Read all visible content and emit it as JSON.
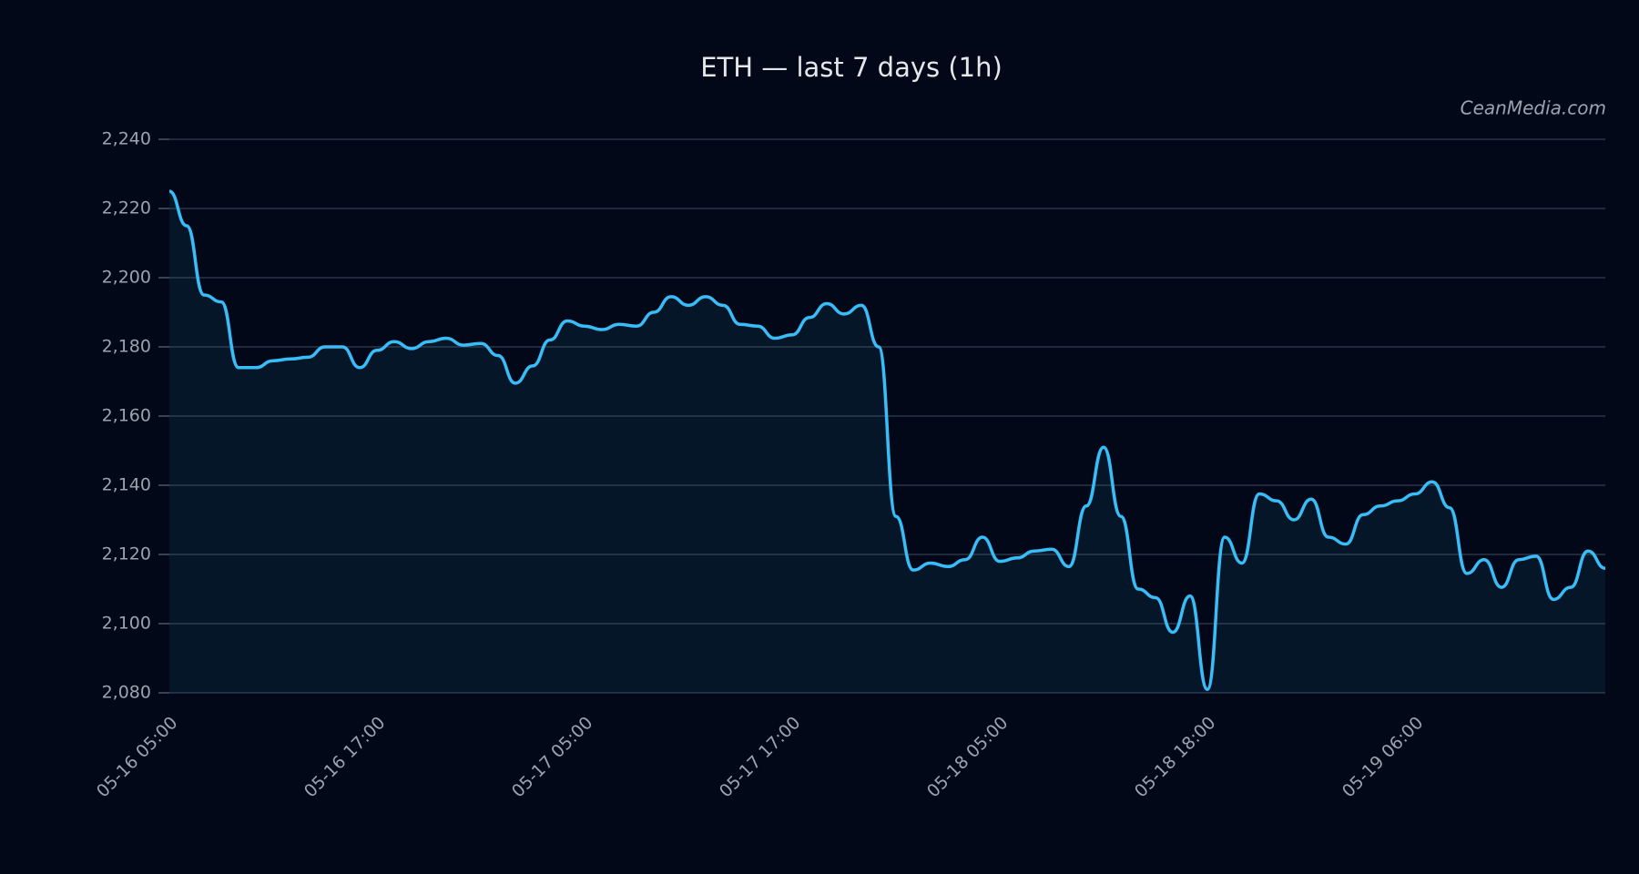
{
  "chart_data": {
    "type": "line",
    "title": "ETH — last 7 days (1h)",
    "annotation": "CeanMedia.com",
    "categories": [
      "05-16 05:00",
      null,
      null,
      null,
      null,
      null,
      null,
      null,
      null,
      null,
      null,
      null,
      "05-16 17:00",
      null,
      null,
      null,
      null,
      null,
      null,
      null,
      null,
      null,
      null,
      null,
      "05-17 05:00",
      null,
      null,
      null,
      null,
      null,
      null,
      null,
      null,
      null,
      null,
      null,
      "05-17 17:00",
      null,
      null,
      null,
      null,
      null,
      null,
      null,
      null,
      null,
      null,
      null,
      "05-18 05:00",
      null,
      null,
      null,
      null,
      null,
      null,
      null,
      null,
      null,
      null,
      null,
      "05-18 18:00",
      null,
      null,
      null,
      null,
      null,
      null,
      null,
      null,
      null,
      null,
      null,
      "05-19 06:00",
      null,
      null,
      null,
      null,
      null,
      null,
      null,
      null,
      null,
      null,
      null
    ],
    "values": [
      2225,
      2215,
      2195,
      2193,
      2174,
      2174,
      2176,
      2176.5,
      2177,
      2180,
      2180,
      2174,
      2179,
      2181.5,
      2179.5,
      2181.5,
      2182.5,
      2180.5,
      2181,
      2177.5,
      2169.5,
      2174.5,
      2182,
      2187.5,
      2186,
      2185,
      2186.5,
      2186,
      2190,
      2194.5,
      2192,
      2194.5,
      2192,
      2186.5,
      2186,
      2182.5,
      2183.5,
      2188.5,
      2192.5,
      2189.5,
      2192,
      2180,
      2131,
      2115.5,
      2117.5,
      2116.5,
      2118.5,
      2125,
      2118,
      2119,
      2121,
      2121.5,
      2116.5,
      2134,
      2151,
      2131,
      2110,
      2107.5,
      2097.5,
      2108,
      2081,
      2125,
      2117.5,
      2137.5,
      2135.5,
      2130,
      2136,
      2125,
      2123,
      2131.5,
      2134,
      2135.5,
      2137.5,
      2141,
      2133.5,
      2114.5,
      2118.5,
      2110.5,
      2118.5,
      2119.5,
      2107,
      2110.5,
      2121,
      2116
    ],
    "color": "#38bdf8",
    "ylim": [
      2080,
      2240
    ],
    "yticks": [
      {
        "value": 2080,
        "label": "2,080"
      },
      {
        "value": 2100,
        "label": "2,100"
      },
      {
        "value": 2120,
        "label": "2,120"
      },
      {
        "value": 2140,
        "label": "2,140"
      },
      {
        "value": 2160,
        "label": "2,160"
      },
      {
        "value": 2180,
        "label": "2,180"
      },
      {
        "value": 2200,
        "label": "2,200"
      },
      {
        "value": 2220,
        "label": "2,220"
      },
      {
        "value": 2240,
        "label": "2,240"
      }
    ],
    "grid": true
  }
}
